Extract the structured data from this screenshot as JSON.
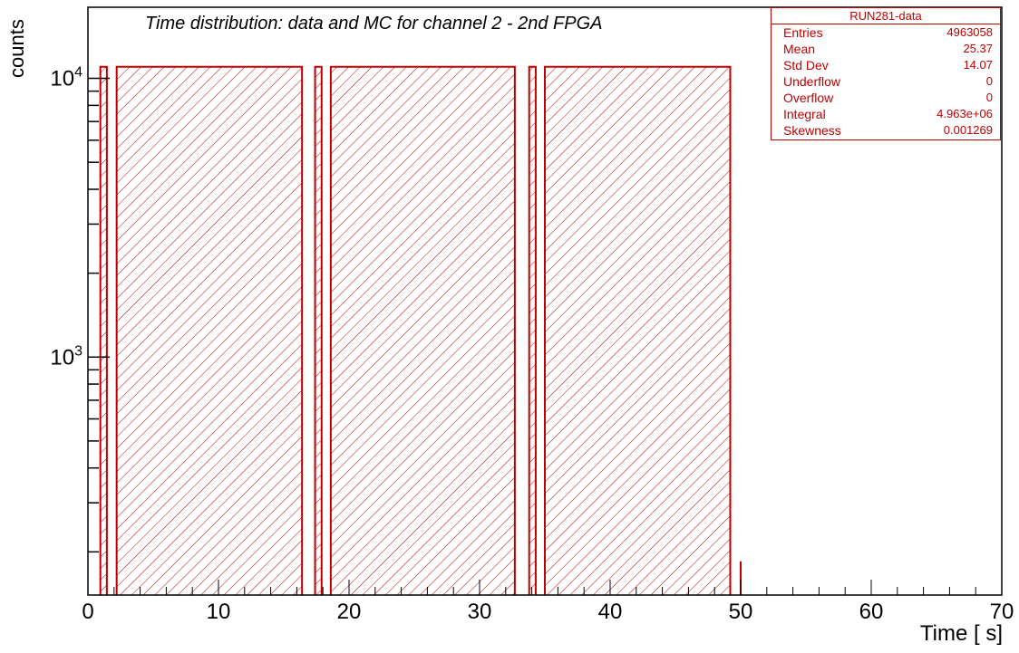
{
  "chart_data": {
    "type": "bar",
    "title": "Time distribution: data and MC for channel 2 - 2nd FPGA",
    "xlabel": "Time [  s]",
    "ylabel": "counts",
    "xlim": [
      0,
      70
    ],
    "ylim": [
      140,
      18000
    ],
    "log_y": true,
    "x_ticks": [
      0,
      10,
      20,
      30,
      40,
      50,
      60,
      70
    ],
    "y_tick_labels": [
      {
        "value": 1000,
        "base": "10",
        "exp": "3"
      },
      {
        "value": 10000,
        "base": "10",
        "exp": "4"
      }
    ],
    "series_color": "#c00000",
    "hatch": "diagonal",
    "blocks": [
      {
        "x_start": 0.95,
        "x_end": 1.45,
        "value": 11000
      },
      {
        "x_start": 2.2,
        "x_end": 16.4,
        "value": 11000
      },
      {
        "x_start": 17.4,
        "x_end": 17.9,
        "value": 11000
      },
      {
        "x_start": 18.6,
        "x_end": 32.7,
        "value": 11000
      },
      {
        "x_start": 33.8,
        "x_end": 34.3,
        "value": 11000
      },
      {
        "x_start": 35.0,
        "x_end": 49.2,
        "value": 11000
      }
    ],
    "spikes": [
      {
        "x": 50.0,
        "value": 185
      }
    ],
    "legend_position": "top-right"
  },
  "stats": {
    "name": "RUN281-data",
    "rows": [
      {
        "label": "Entries",
        "value": "4963058"
      },
      {
        "label": "Mean",
        "value": "25.37"
      },
      {
        "label": "Std Dev",
        "value": "14.07"
      },
      {
        "label": "Underflow",
        "value": "0"
      },
      {
        "label": "Overflow",
        "value": "0"
      },
      {
        "label": "Integral",
        "value": "4.963e+06"
      },
      {
        "label": "Skewness",
        "value": "0.001269"
      }
    ]
  }
}
